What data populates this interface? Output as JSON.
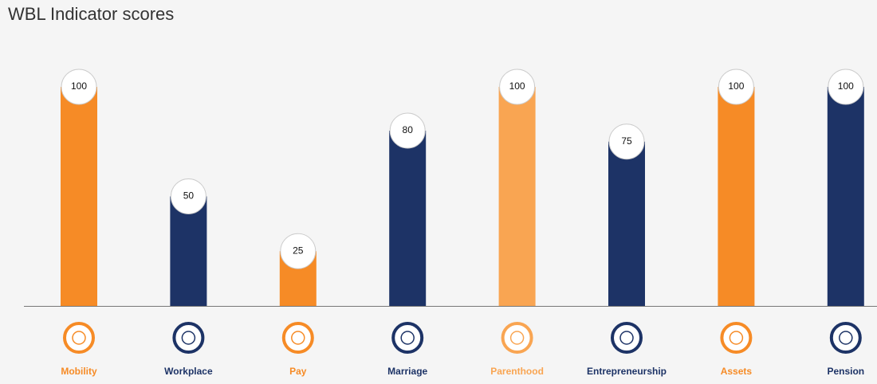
{
  "chart_data": {
    "type": "bar",
    "title": "WBL Indicator scores",
    "categories": [
      "Mobility",
      "Workplace",
      "Pay",
      "Marriage",
      "Parenthood",
      "Entrepreneurship",
      "Assets",
      "Pension"
    ],
    "values": [
      100,
      50,
      25,
      80,
      100,
      75,
      100,
      100
    ],
    "colors": [
      "#f68b26",
      "#1d3366",
      "#f68b26",
      "#1d3366",
      "#f9a552",
      "#1d3366",
      "#f68b26",
      "#1d3366"
    ],
    "ylim": [
      0,
      100
    ]
  }
}
